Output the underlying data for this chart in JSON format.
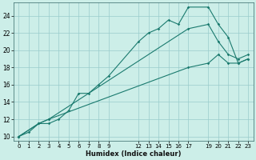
{
  "xlabel": "Humidex (Indice chaleur)",
  "background_color": "#cceee8",
  "grid_color": "#99cccc",
  "line_color": "#1a7a6e",
  "xlim": [
    -0.5,
    23.5
  ],
  "ylim": [
    9.5,
    25.5
  ],
  "yticks": [
    10,
    12,
    14,
    16,
    18,
    20,
    22,
    24
  ],
  "xticks": [
    0,
    1,
    2,
    3,
    4,
    5,
    6,
    7,
    8,
    9,
    12,
    13,
    14,
    15,
    16,
    17,
    19,
    20,
    21,
    22,
    23
  ],
  "xtick_labels": [
    "0",
    "1",
    "2",
    "3",
    "4",
    "5",
    "6",
    "7",
    "8",
    "9",
    "12",
    "13",
    "14",
    "15",
    "16",
    "17",
    "19",
    "20",
    "21",
    "22",
    "23"
  ],
  "series": [
    {
      "x": [
        0,
        1,
        2,
        3,
        4,
        5,
        6,
        7,
        8,
        9,
        12,
        13,
        14,
        15,
        16,
        17,
        19,
        20,
        21,
        22,
        23
      ],
      "y": [
        10,
        10.5,
        11.5,
        11.5,
        12,
        13,
        15,
        15,
        16,
        17,
        21,
        22,
        22.5,
        23.5,
        23,
        25,
        25,
        23,
        21.5,
        18.5,
        19
      ]
    },
    {
      "x": [
        0,
        2,
        3,
        17,
        19,
        20,
        21,
        22,
        23
      ],
      "y": [
        10,
        11.5,
        12,
        22.5,
        23,
        21,
        19.5,
        19,
        19.5
      ]
    },
    {
      "x": [
        0,
        2,
        3,
        17,
        19,
        20,
        21,
        22,
        23
      ],
      "y": [
        10,
        11.5,
        12,
        18,
        18.5,
        19.5,
        18.5,
        18.5,
        19
      ]
    }
  ]
}
